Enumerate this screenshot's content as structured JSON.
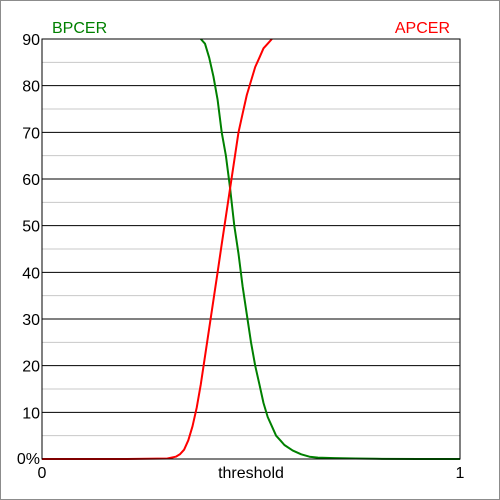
{
  "chart_data": {
    "type": "line",
    "xlabel": "threshold",
    "ylabel": "",
    "xlim": [
      0,
      1
    ],
    "ylim": [
      0,
      90
    ],
    "x_ticks": [
      "0",
      "1"
    ],
    "y_ticks": [
      "0%",
      "10",
      "20",
      "30",
      "40",
      "50",
      "60",
      "70",
      "80",
      "90"
    ],
    "grid": "horizontal",
    "legend": "top",
    "series": [
      {
        "name": "BPCER",
        "color": "#008000",
        "x": [
          0.38,
          0.39,
          0.4,
          0.41,
          0.42,
          0.43,
          0.44,
          0.45,
          0.46,
          0.47,
          0.48,
          0.49,
          0.5,
          0.51,
          0.52,
          0.53,
          0.54,
          0.55,
          0.56,
          0.57,
          0.58,
          0.6,
          0.62,
          0.64,
          0.66,
          0.7,
          0.75,
          0.8,
          0.9,
          1.0
        ],
        "values": [
          90,
          89,
          86,
          82,
          77,
          70,
          65,
          58,
          50,
          44,
          37,
          31,
          25,
          20,
          16,
          12,
          9,
          7,
          5,
          4,
          3,
          1.8,
          1.0,
          0.5,
          0.3,
          0.2,
          0.1,
          0.05,
          0,
          0
        ]
      },
      {
        "name": "APCER",
        "color": "#ff0000",
        "x": [
          0.0,
          0.1,
          0.2,
          0.3,
          0.31,
          0.32,
          0.33,
          0.34,
          0.35,
          0.36,
          0.37,
          0.38,
          0.39,
          0.4,
          0.41,
          0.42,
          0.43,
          0.44,
          0.45,
          0.46,
          0.47,
          0.48,
          0.49,
          0.5,
          0.51,
          0.52,
          0.53,
          0.54,
          0.55
        ],
        "values": [
          0,
          0,
          0,
          0.1,
          0.3,
          0.5,
          1.0,
          2.0,
          4.0,
          7.0,
          11,
          16,
          22,
          28,
          34,
          40,
          46,
          52,
          58,
          64,
          70,
          74,
          78,
          81,
          84,
          86,
          88,
          89,
          90
        ]
      }
    ]
  }
}
